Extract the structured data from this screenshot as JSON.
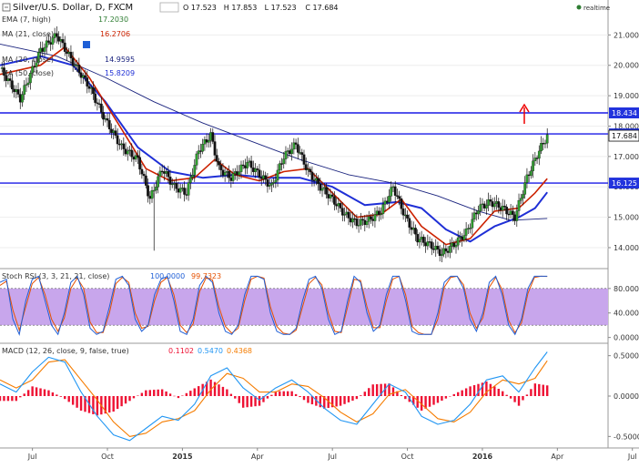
{
  "header": {
    "title": "Silver/U.S. Dollar, D, FXCM",
    "ohlc": [
      {
        "k": "O",
        "v": "17.523"
      },
      {
        "k": "H",
        "v": "17.853"
      },
      {
        "k": "L",
        "v": "17.523"
      },
      {
        "k": "C",
        "v": "17.684"
      }
    ],
    "realtime": "realtime"
  },
  "indicators": {
    "ema7": {
      "label": "EMA (7, high)",
      "value": "17.2030",
      "color": "#2e7d32"
    },
    "ma21": {
      "label": "MA (21, close)",
      "value": "16.2706",
      "color": "#cc2200"
    },
    "ma20": {
      "label": "MA (20, close)",
      "value": "14.9595",
      "color": "#1a237e"
    },
    "ma50": {
      "label": "MA (50, close)",
      "value": "15.8209",
      "color": "#1f2fd6"
    }
  },
  "stoch": {
    "label": "Stoch RSI (3, 3, 21, 21, close)",
    "k": "100.0000",
    "d": "99.7323",
    "k_color": "#1f5fd6",
    "d_color": "#e65100",
    "band_color": "#c8a6ec"
  },
  "macd": {
    "label": "MACD (12, 26, close, 9, false, true)",
    "hist": "0.1102",
    "macd": "0.5470",
    "signal": "0.4368",
    "hist_color": "#ee1133",
    "macd_color": "#2196f3",
    "signal_color": "#f57c00"
  },
  "chart_data": [
    {
      "type": "candlestick",
      "name": "price",
      "x_labels": [
        "Jul",
        "Oct",
        "2015",
        "Apr",
        "Jul",
        "Oct",
        "2016",
        "Apr",
        "Jul"
      ],
      "y_ticks": [
        "21.000",
        "20.000",
        "19.000",
        "18.000",
        "17.000",
        "16.000",
        "15.000",
        "14.000"
      ],
      "ylim": [
        13.4,
        21.7
      ],
      "horizontal_lines": [
        {
          "value": 18.434,
          "label": "18.434"
        },
        {
          "value": 17.742,
          "label": "17.742"
        },
        {
          "value": 16.125,
          "label": "16.125"
        }
      ],
      "last_price": {
        "value": 17.684,
        "label": "17.684"
      },
      "close_path": [
        [
          0,
          19.9
        ],
        [
          5,
          18.9
        ],
        [
          10,
          20.5
        ],
        [
          14,
          21.0
        ],
        [
          18,
          20.1
        ],
        [
          22,
          19.3
        ],
        [
          26,
          18.2
        ],
        [
          30,
          17.3
        ],
        [
          34,
          16.9
        ],
        [
          37,
          15.6
        ],
        [
          40,
          16.6
        ],
        [
          43,
          16.0
        ],
        [
          46,
          15.8
        ],
        [
          49,
          17.2
        ],
        [
          52,
          17.7
        ],
        [
          54,
          16.6
        ],
        [
          57,
          16.3
        ],
        [
          61,
          16.8
        ],
        [
          64,
          16.4
        ],
        [
          67,
          16.0
        ],
        [
          70,
          17.0
        ],
        [
          73,
          17.4
        ],
        [
          76,
          16.5
        ],
        [
          79,
          16.0
        ],
        [
          82,
          15.6
        ],
        [
          85,
          15.1
        ],
        [
          88,
          14.8
        ],
        [
          91,
          14.9
        ],
        [
          94,
          15.2
        ],
        [
          97,
          16.0
        ],
        [
          100,
          15.0
        ],
        [
          103,
          14.3
        ],
        [
          106,
          14.1
        ],
        [
          109,
          13.8
        ],
        [
          112,
          14.1
        ],
        [
          115,
          14.5
        ],
        [
          118,
          15.3
        ],
        [
          121,
          15.5
        ],
        [
          124,
          15.3
        ],
        [
          127,
          15.0
        ],
        [
          130,
          16.3
        ],
        [
          133,
          17.2
        ],
        [
          135,
          17.68
        ]
      ],
      "ma21_path": [
        [
          0,
          19.7
        ],
        [
          10,
          20.0
        ],
        [
          16,
          20.6
        ],
        [
          22,
          19.6
        ],
        [
          30,
          17.9
        ],
        [
          36,
          16.6
        ],
        [
          42,
          16.2
        ],
        [
          48,
          16.3
        ],
        [
          53,
          16.9
        ],
        [
          58,
          16.4
        ],
        [
          64,
          16.2
        ],
        [
          70,
          16.5
        ],
        [
          76,
          16.6
        ],
        [
          82,
          15.8
        ],
        [
          88,
          15.0
        ],
        [
          94,
          15.1
        ],
        [
          99,
          15.6
        ],
        [
          104,
          14.7
        ],
        [
          110,
          14.1
        ],
        [
          116,
          14.3
        ],
        [
          122,
          15.2
        ],
        [
          128,
          15.3
        ],
        [
          132,
          15.8
        ],
        [
          135,
          16.27
        ]
      ],
      "ma50_path": [
        [
          0,
          20.0
        ],
        [
          10,
          20.3
        ],
        [
          18,
          20.0
        ],
        [
          26,
          18.8
        ],
        [
          34,
          17.3
        ],
        [
          42,
          16.5
        ],
        [
          50,
          16.3
        ],
        [
          58,
          16.4
        ],
        [
          66,
          16.3
        ],
        [
          74,
          16.3
        ],
        [
          82,
          16.0
        ],
        [
          90,
          15.4
        ],
        [
          98,
          15.5
        ],
        [
          104,
          15.3
        ],
        [
          110,
          14.6
        ],
        [
          116,
          14.2
        ],
        [
          122,
          14.7
        ],
        [
          128,
          15.0
        ],
        [
          132,
          15.3
        ],
        [
          135,
          15.82
        ]
      ],
      "ma200_path": [
        [
          0,
          20.7
        ],
        [
          14,
          20.3
        ],
        [
          26,
          19.6
        ],
        [
          38,
          18.8
        ],
        [
          50,
          18.1
        ],
        [
          62,
          17.5
        ],
        [
          74,
          16.9
        ],
        [
          86,
          16.4
        ],
        [
          98,
          16.1
        ],
        [
          108,
          15.7
        ],
        [
          118,
          15.2
        ],
        [
          126,
          14.9
        ],
        [
          135,
          14.96
        ]
      ],
      "x_max": 150
    },
    {
      "type": "line",
      "name": "stoch_rsi",
      "y_ticks": [
        "80.0000",
        "40.0000",
        "0.0000"
      ],
      "ylim": [
        -5,
        108
      ],
      "bands": [
        20,
        80
      ],
      "k_values": [
        90,
        95,
        30,
        5,
        60,
        95,
        100,
        60,
        20,
        5,
        40,
        90,
        100,
        70,
        15,
        5,
        10,
        50,
        95,
        100,
        85,
        30,
        10,
        20,
        70,
        95,
        100,
        60,
        10,
        5,
        30,
        85,
        100,
        90,
        40,
        10,
        5,
        20,
        70,
        100,
        100,
        95,
        40,
        10,
        5,
        5,
        15,
        60,
        95,
        100,
        80,
        30,
        5,
        10,
        60,
        100,
        90,
        40,
        10,
        20,
        70,
        100,
        100,
        60,
        10,
        5,
        5,
        5,
        40,
        90,
        100,
        100,
        80,
        30,
        10,
        40,
        90,
        100,
        70,
        20,
        5,
        30,
        80,
        100,
        100,
        100
      ],
      "d_values": [
        85,
        92,
        45,
        12,
        50,
        88,
        98,
        70,
        30,
        10,
        32,
        80,
        97,
        80,
        25,
        8,
        8,
        40,
        88,
        98,
        90,
        40,
        15,
        18,
        60,
        90,
        98,
        70,
        20,
        8,
        22,
        75,
        97,
        94,
        50,
        18,
        7,
        15,
        60,
        95,
        100,
        97,
        50,
        18,
        7,
        5,
        12,
        50,
        88,
        98,
        86,
        40,
        10,
        8,
        50,
        95,
        93,
        50,
        16,
        16,
        60,
        95,
        100,
        70,
        18,
        8,
        5,
        5,
        30,
        82,
        98,
        100,
        86,
        40,
        15,
        32,
        82,
        98,
        78,
        28,
        8,
        24,
        72,
        98,
        100,
        99.7
      ]
    },
    {
      "type": "bar+line",
      "name": "macd",
      "y_ticks": [
        "0.5000",
        "0.0000",
        "-0.5000"
      ],
      "ylim": [
        -0.62,
        0.62
      ],
      "macd_path": [
        [
          0,
          0.15
        ],
        [
          4,
          0.05
        ],
        [
          8,
          0.3
        ],
        [
          12,
          0.48
        ],
        [
          16,
          0.42
        ],
        [
          20,
          0.05
        ],
        [
          24,
          -0.25
        ],
        [
          28,
          -0.48
        ],
        [
          32,
          -0.55
        ],
        [
          36,
          -0.4
        ],
        [
          40,
          -0.25
        ],
        [
          44,
          -0.3
        ],
        [
          48,
          -0.1
        ],
        [
          52,
          0.25
        ],
        [
          56,
          0.35
        ],
        [
          60,
          0.1
        ],
        [
          64,
          -0.05
        ],
        [
          68,
          0.1
        ],
        [
          72,
          0.2
        ],
        [
          76,
          0.05
        ],
        [
          80,
          -0.15
        ],
        [
          84,
          -0.3
        ],
        [
          88,
          -0.35
        ],
        [
          92,
          -0.1
        ],
        [
          96,
          0.15
        ],
        [
          100,
          0.05
        ],
        [
          104,
          -0.25
        ],
        [
          108,
          -0.35
        ],
        [
          112,
          -0.3
        ],
        [
          116,
          -0.1
        ],
        [
          120,
          0.2
        ],
        [
          124,
          0.25
        ],
        [
          128,
          0.05
        ],
        [
          132,
          0.35
        ],
        [
          135,
          0.547
        ]
      ],
      "signal_path": [
        [
          0,
          0.2
        ],
        [
          4,
          0.1
        ],
        [
          8,
          0.2
        ],
        [
          12,
          0.42
        ],
        [
          16,
          0.45
        ],
        [
          20,
          0.2
        ],
        [
          24,
          -0.05
        ],
        [
          28,
          -0.32
        ],
        [
          32,
          -0.5
        ],
        [
          36,
          -0.46
        ],
        [
          40,
          -0.32
        ],
        [
          44,
          -0.28
        ],
        [
          48,
          -0.18
        ],
        [
          52,
          0.08
        ],
        [
          56,
          0.28
        ],
        [
          60,
          0.22
        ],
        [
          64,
          0.05
        ],
        [
          68,
          0.05
        ],
        [
          72,
          0.15
        ],
        [
          76,
          0.12
        ],
        [
          80,
          -0.02
        ],
        [
          84,
          -0.2
        ],
        [
          88,
          -0.32
        ],
        [
          92,
          -0.22
        ],
        [
          96,
          0.02
        ],
        [
          100,
          0.08
        ],
        [
          104,
          -0.1
        ],
        [
          108,
          -0.28
        ],
        [
          112,
          -0.32
        ],
        [
          116,
          -0.2
        ],
        [
          120,
          0.05
        ],
        [
          124,
          0.2
        ],
        [
          128,
          0.15
        ],
        [
          132,
          0.22
        ],
        [
          135,
          0.437
        ]
      ],
      "hist_step": 1
    }
  ]
}
